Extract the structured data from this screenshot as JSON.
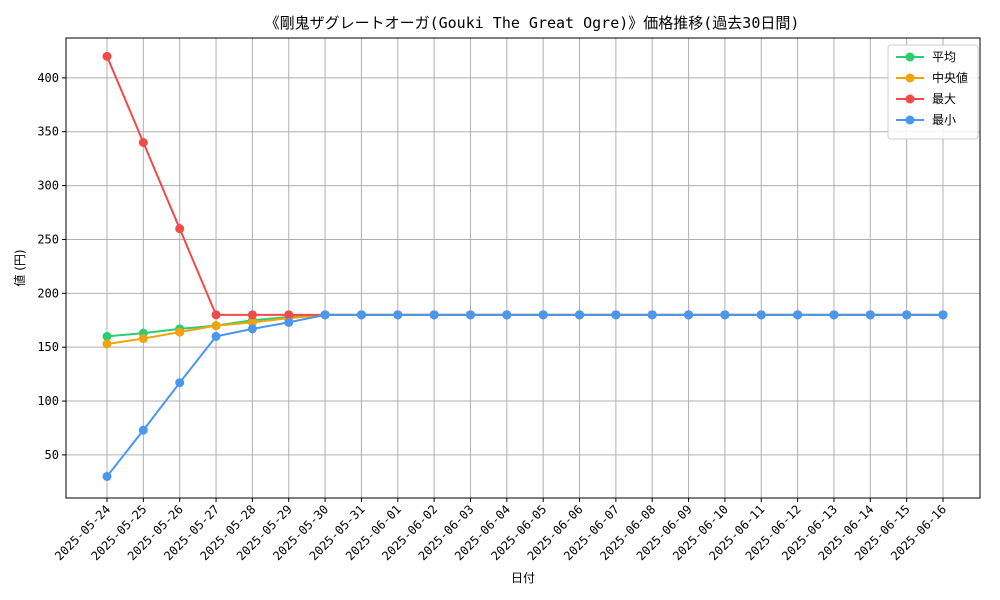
{
  "chart_data": {
    "type": "line",
    "title": "《剛鬼ザグレートオーガ(Gouki The Great Ogre)》価格推移(過去30日間)",
    "xlabel": "日付",
    "ylabel": "値 (円)",
    "ylim": [
      10,
      437
    ],
    "yticks": [
      50,
      100,
      150,
      200,
      250,
      300,
      350,
      400
    ],
    "grid": true,
    "legend_position": "top-right",
    "categories": [
      "2025-05-24",
      "2025-05-25",
      "2025-05-26",
      "2025-05-27",
      "2025-05-28",
      "2025-05-29",
      "2025-05-30",
      "2025-05-31",
      "2025-06-01",
      "2025-06-02",
      "2025-06-03",
      "2025-06-04",
      "2025-06-05",
      "2025-06-06",
      "2025-06-07",
      "2025-06-08",
      "2025-06-09",
      "2025-06-10",
      "2025-06-11",
      "2025-06-12",
      "2025-06-13",
      "2025-06-14",
      "2025-06-15",
      "2025-06-16"
    ],
    "series": [
      {
        "name": "平均",
        "color": "#2ecc71",
        "values": [
          160,
          163,
          167,
          170,
          175,
          178,
          180,
          180,
          180,
          180,
          180,
          180,
          180,
          180,
          180,
          180,
          180,
          180,
          180,
          180,
          180,
          180,
          180,
          180
        ]
      },
      {
        "name": "中央値",
        "color": "#f0a30a",
        "values": [
          153,
          158,
          164,
          170,
          173,
          177,
          180,
          180,
          180,
          180,
          180,
          180,
          180,
          180,
          180,
          180,
          180,
          180,
          180,
          180,
          180,
          180,
          180,
          180
        ]
      },
      {
        "name": "最大",
        "color": "#f04a4a",
        "values": [
          420,
          340,
          260,
          180,
          180,
          180,
          180,
          180,
          180,
          180,
          180,
          180,
          180,
          180,
          180,
          180,
          180,
          180,
          180,
          180,
          180,
          180,
          180,
          180
        ]
      },
      {
        "name": "最小",
        "color": "#4a97f0",
        "values": [
          30,
          73,
          117,
          160,
          167,
          173,
          180,
          180,
          180,
          180,
          180,
          180,
          180,
          180,
          180,
          180,
          180,
          180,
          180,
          180,
          180,
          180,
          180,
          180
        ]
      }
    ]
  }
}
